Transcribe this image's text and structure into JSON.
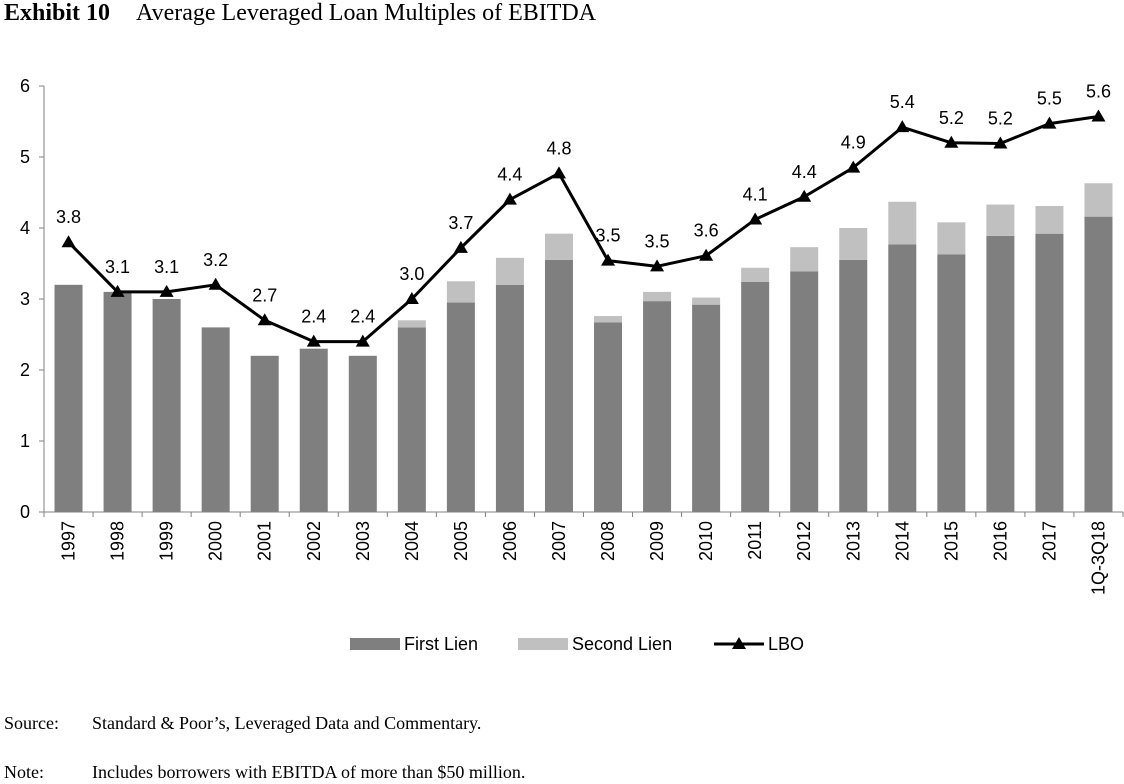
{
  "exhibit": {
    "number": "Exhibit 10",
    "title": "Average Leveraged Loan Multiples of EBITDA"
  },
  "chart_data": {
    "type": "bar",
    "stacked": true,
    "categories": [
      "1997",
      "1998",
      "1999",
      "2000",
      "2001",
      "2002",
      "2003",
      "2004",
      "2005",
      "2006",
      "2007",
      "2008",
      "2009",
      "2010",
      "2011",
      "2012",
      "2013",
      "2014",
      "2015",
      "2016",
      "2017",
      "1Q-3Q18"
    ],
    "series": [
      {
        "name": "First Lien",
        "kind": "bar",
        "color": "#7f7f7f",
        "values": [
          3.2,
          3.1,
          3.0,
          2.6,
          2.2,
          2.3,
          2.2,
          2.6,
          2.95,
          3.2,
          3.55,
          2.67,
          2.97,
          2.92,
          3.24,
          3.39,
          3.55,
          3.77,
          3.63,
          3.89,
          3.92,
          4.16
        ]
      },
      {
        "name": "Second Lien",
        "kind": "bar",
        "color": "#c0c0c0",
        "values": [
          0,
          0,
          0,
          0,
          0,
          0,
          0,
          0.1,
          0.3,
          0.38,
          0.37,
          0.09,
          0.13,
          0.1,
          0.2,
          0.34,
          0.45,
          0.6,
          0.45,
          0.44,
          0.39,
          0.47
        ]
      },
      {
        "name": "LBO",
        "kind": "line",
        "color": "#000000",
        "values": [
          3.8,
          3.1,
          3.1,
          3.2,
          2.7,
          2.4,
          2.4,
          3.0,
          3.72,
          4.4,
          4.77,
          3.54,
          3.46,
          3.61,
          4.12,
          4.44,
          4.85,
          5.42,
          5.2,
          5.19,
          5.47,
          5.57
        ],
        "labels": [
          "3.8",
          "3.1",
          "3.1",
          "3.2",
          "2.7",
          "2.4",
          "2.4",
          "3.0",
          "3.7",
          "4.4",
          "4.8",
          "3.5",
          "3.5",
          "3.6",
          "4.1",
          "4.4",
          "4.9",
          "5.4",
          "5.2",
          "5.2",
          "5.5",
          "5.6"
        ]
      }
    ],
    "ylim": [
      0,
      6
    ],
    "yticks": [
      "0",
      "1",
      "2",
      "3",
      "4",
      "5",
      "6"
    ],
    "grid": false,
    "legend_position": "bottom"
  },
  "footer": {
    "source_label": "Source:",
    "source_text": "Standard & Poor’s, Leveraged Data and Commentary.",
    "note_label": "Note:",
    "note_text": "Includes borrowers with EBITDA of more than $50 million."
  }
}
